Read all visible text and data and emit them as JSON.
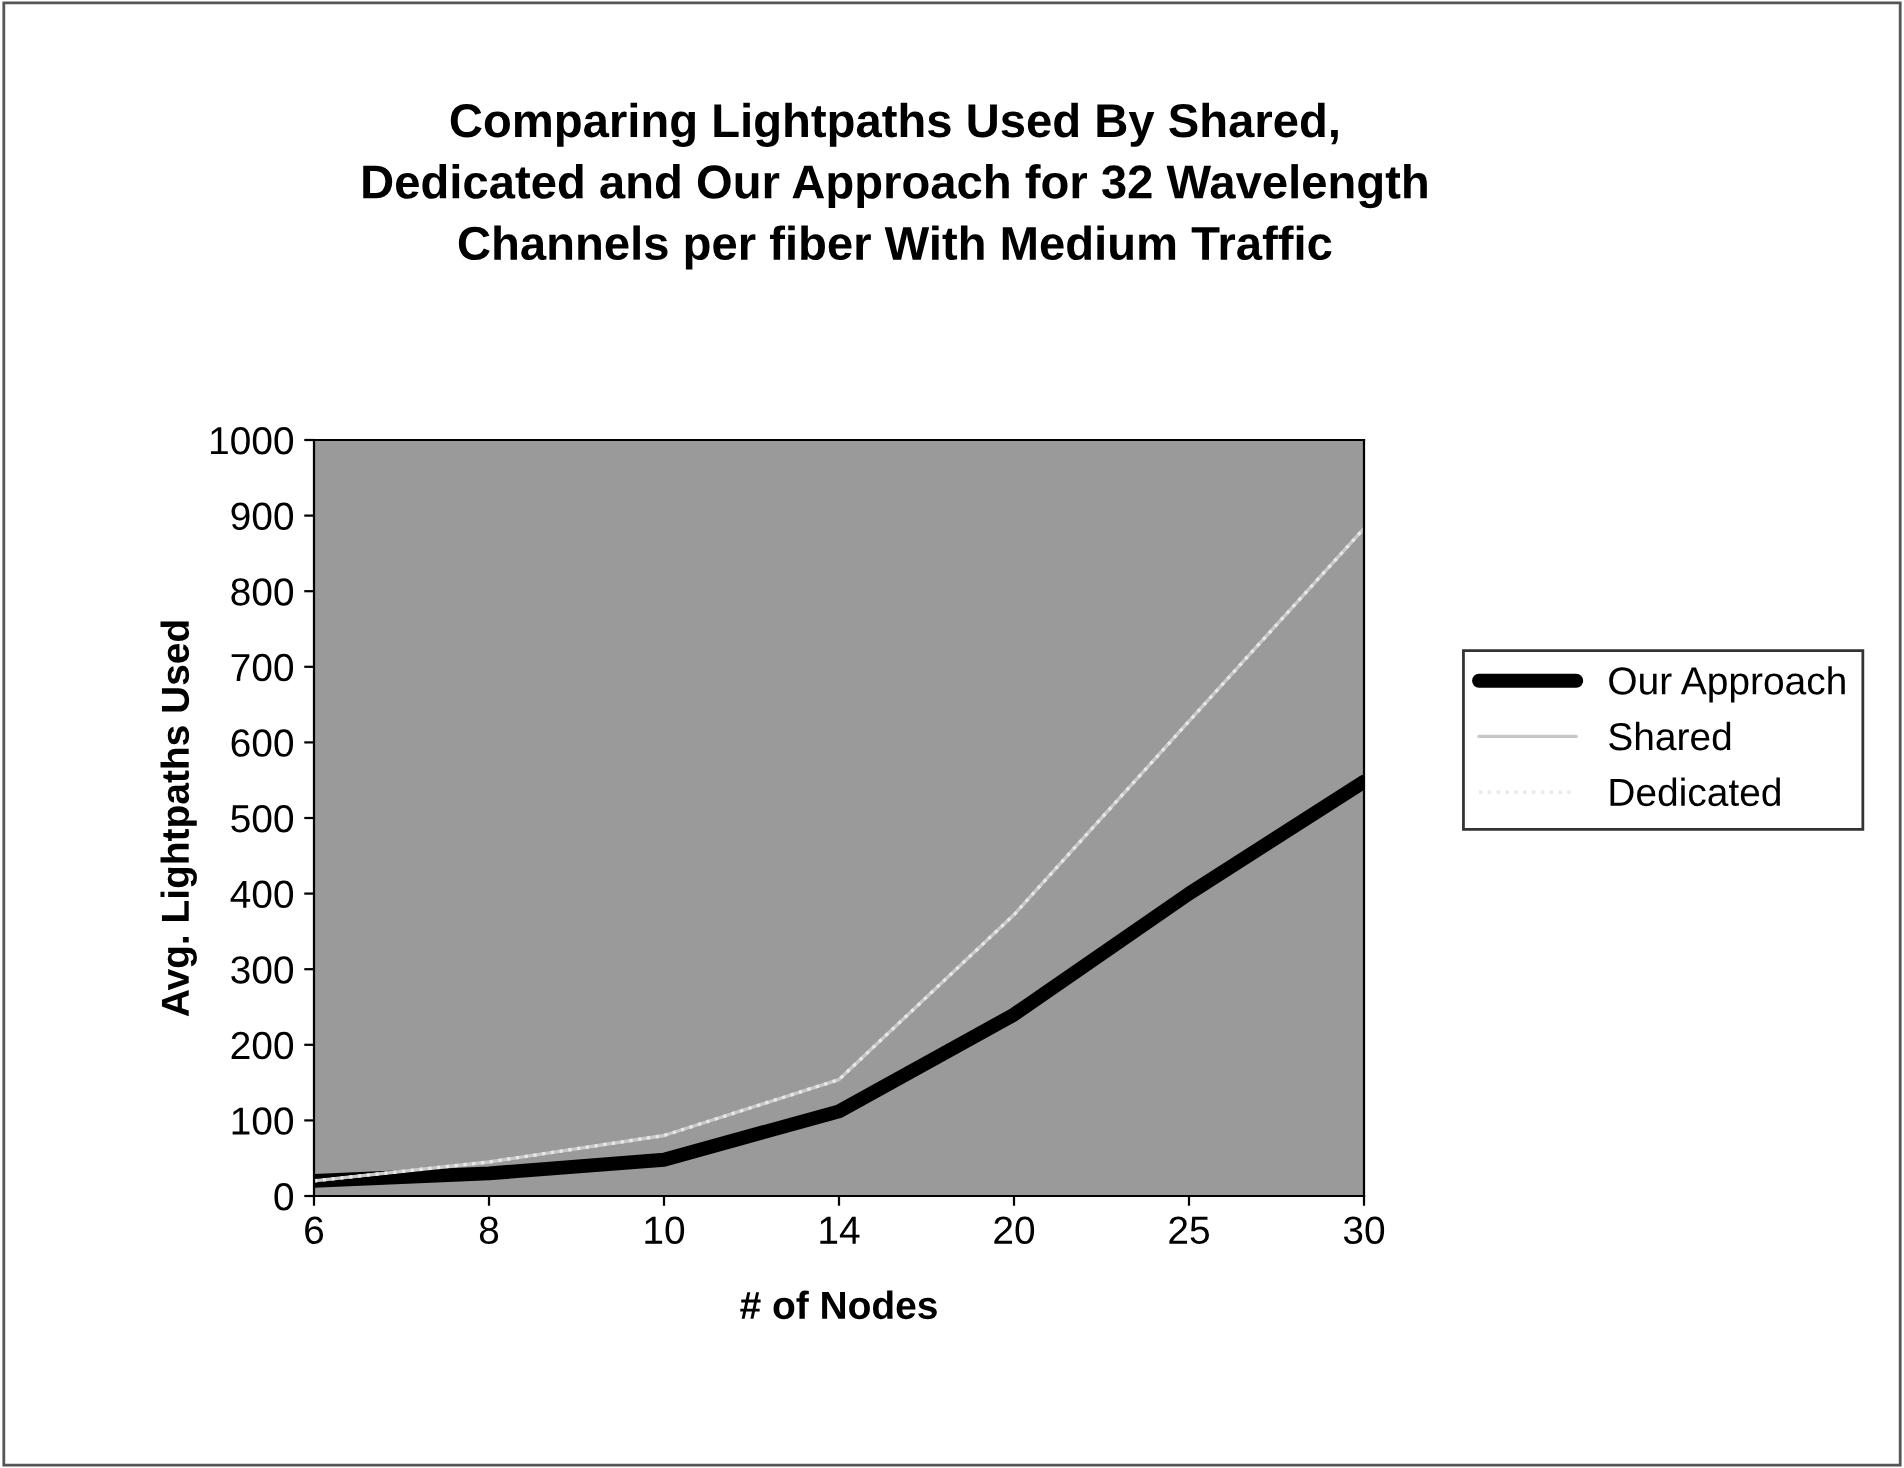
{
  "chart_data": {
    "type": "line",
    "title": "Comparing Lightpaths Used By Shared,\nDedicated and Our Approach for 32 Wavelength\nChannels per fiber With Medium Traffic",
    "xlabel": "# of Nodes",
    "ylabel": "Avg. Lightpaths Used",
    "categories": [
      "6",
      "8",
      "10",
      "14",
      "20",
      "25",
      "30"
    ],
    "series": [
      {
        "name": "Our Approach",
        "color": "#000000",
        "values": [
          20,
          30,
          48,
          112,
          240,
          400,
          548
        ]
      },
      {
        "name": "Shared",
        "color": "#c8c8c8",
        "values": [
          20,
          45,
          80,
          154,
          372,
          628,
          883
        ]
      },
      {
        "name": "Dedicated",
        "color": "#e8e8e8",
        "line_style": "dotted",
        "values": [
          20,
          45,
          80,
          154,
          372,
          628,
          883
        ]
      }
    ],
    "ylim": [
      0,
      1000
    ],
    "yticks": [
      0,
      100,
      200,
      300,
      400,
      500,
      600,
      700,
      800,
      900,
      1000
    ],
    "grid": false,
    "legend": "right",
    "marker": "none"
  }
}
